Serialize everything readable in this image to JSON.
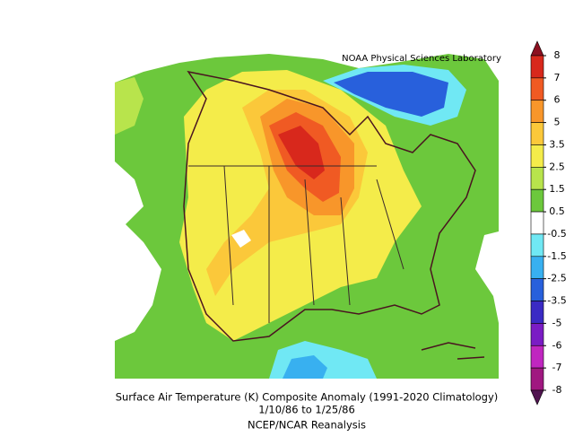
{
  "credit": "NOAA Physical Sciences Laboratory",
  "caption": [
    "Surface Air Temperature (K) Composite Anomaly (1991-2020 Climatology)",
    "1/10/86  to 1/25/86",
    "NCEP/NCAR Reanalysis"
  ],
  "colorbar": {
    "labels": [
      8,
      7,
      6,
      5,
      3.5,
      2.5,
      1.5,
      0.5,
      -0.5,
      -1.5,
      -2.5,
      -3.5,
      -5,
      -6,
      -7,
      -8
    ],
    "colors": [
      "#8c1020",
      "#d8281c",
      "#f05a23",
      "#f8962a",
      "#fbc83a",
      "#f4ec4a",
      "#b8e44c",
      "#6cc83c",
      "#ffffff",
      "#70e8f4",
      "#38b0f0",
      "#2860dc",
      "#3a2ac4",
      "#7a1cc4",
      "#c026c0",
      "#a01880",
      "#501450"
    ]
  }
}
